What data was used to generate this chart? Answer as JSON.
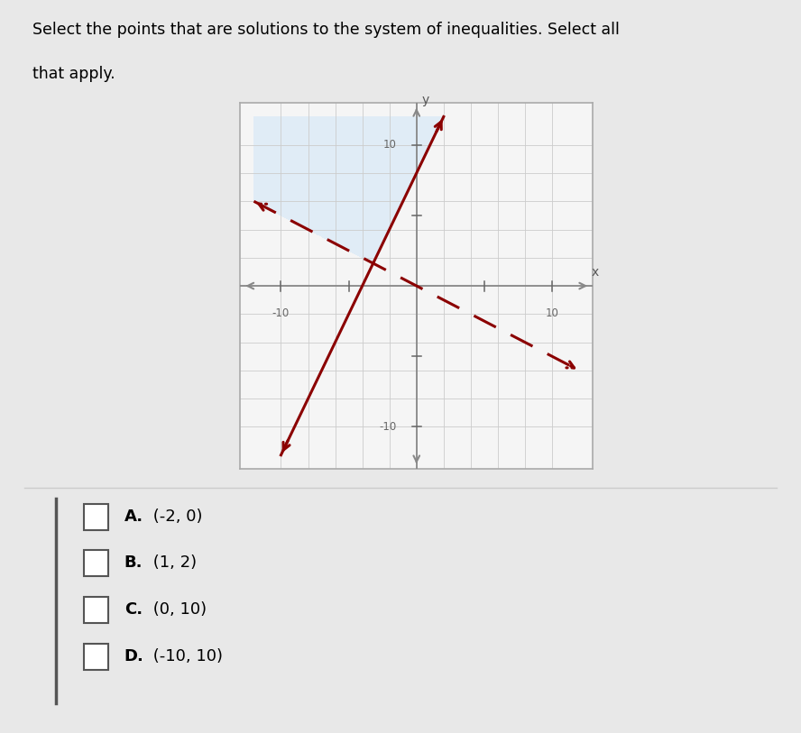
{
  "solid_line": {
    "slope": 2,
    "intercept": 8,
    "color": "#8B0000",
    "linewidth": 2.2
  },
  "dashed_line": {
    "slope": -0.5,
    "intercept": 0,
    "color": "#8B0000",
    "linewidth": 2.2
  },
  "shade_color": "#d6e8f7",
  "shade_alpha": 0.65,
  "graph_xlim": [
    -12,
    12
  ],
  "graph_ylim": [
    -12,
    12
  ],
  "options": [
    {
      "label": "A.",
      "bold_label": "A.",
      "point": "(-2, 0)"
    },
    {
      "label": "B.",
      "bold_label": "B.",
      "point": "(1, 2)"
    },
    {
      "label": "C.",
      "bold_label": "C.",
      "point": "(0, 10)"
    },
    {
      "label": "D.",
      "bold_label": "D.",
      "point": "(-10, 10)"
    }
  ],
  "question_line1": "Select the points that are solutions to the system of inequalities. Select all",
  "question_line2": "that apply.",
  "bg_color": "#e8e8e8",
  "axis_color": "#888888",
  "tick_color": "#666666",
  "grid_color": "#cccccc",
  "graph_bg": "#f5f5f5"
}
